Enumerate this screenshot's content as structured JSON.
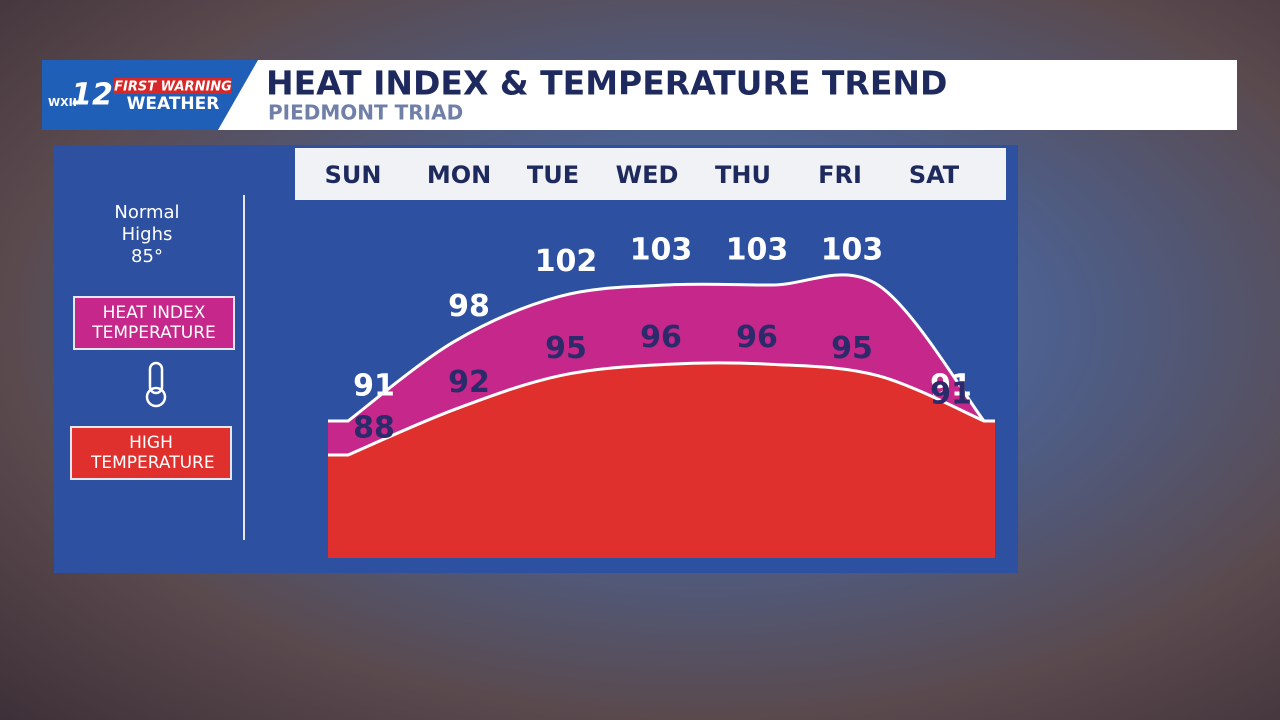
{
  "logo": {
    "station": "WXII",
    "channel": "12",
    "brand_top": "FIRST WARNING",
    "brand_bottom": "WEATHER"
  },
  "header": {
    "title": "HEAT INDEX & TEMPERATURE TREND",
    "subtitle": "PIEDMONT TRIAD"
  },
  "normal_highs": {
    "label": "Normal Highs",
    "value": "85°"
  },
  "chart_data": {
    "type": "area",
    "categories": [
      "SUN",
      "MON",
      "TUE",
      "WED",
      "THU",
      "FRI",
      "SAT"
    ],
    "series": [
      {
        "name": "HEAT INDEX TEMPERATURE",
        "color": "#c5278a",
        "label_color": "#ffffff",
        "values": [
          91,
          98,
          102,
          103,
          103,
          103,
          91
        ]
      },
      {
        "name": "HIGH TEMPERATURE",
        "color": "#e0302d",
        "label_color": "#2b2a6b",
        "values": [
          88,
          92,
          95,
          96,
          96,
          95,
          91
        ]
      }
    ]
  }
}
